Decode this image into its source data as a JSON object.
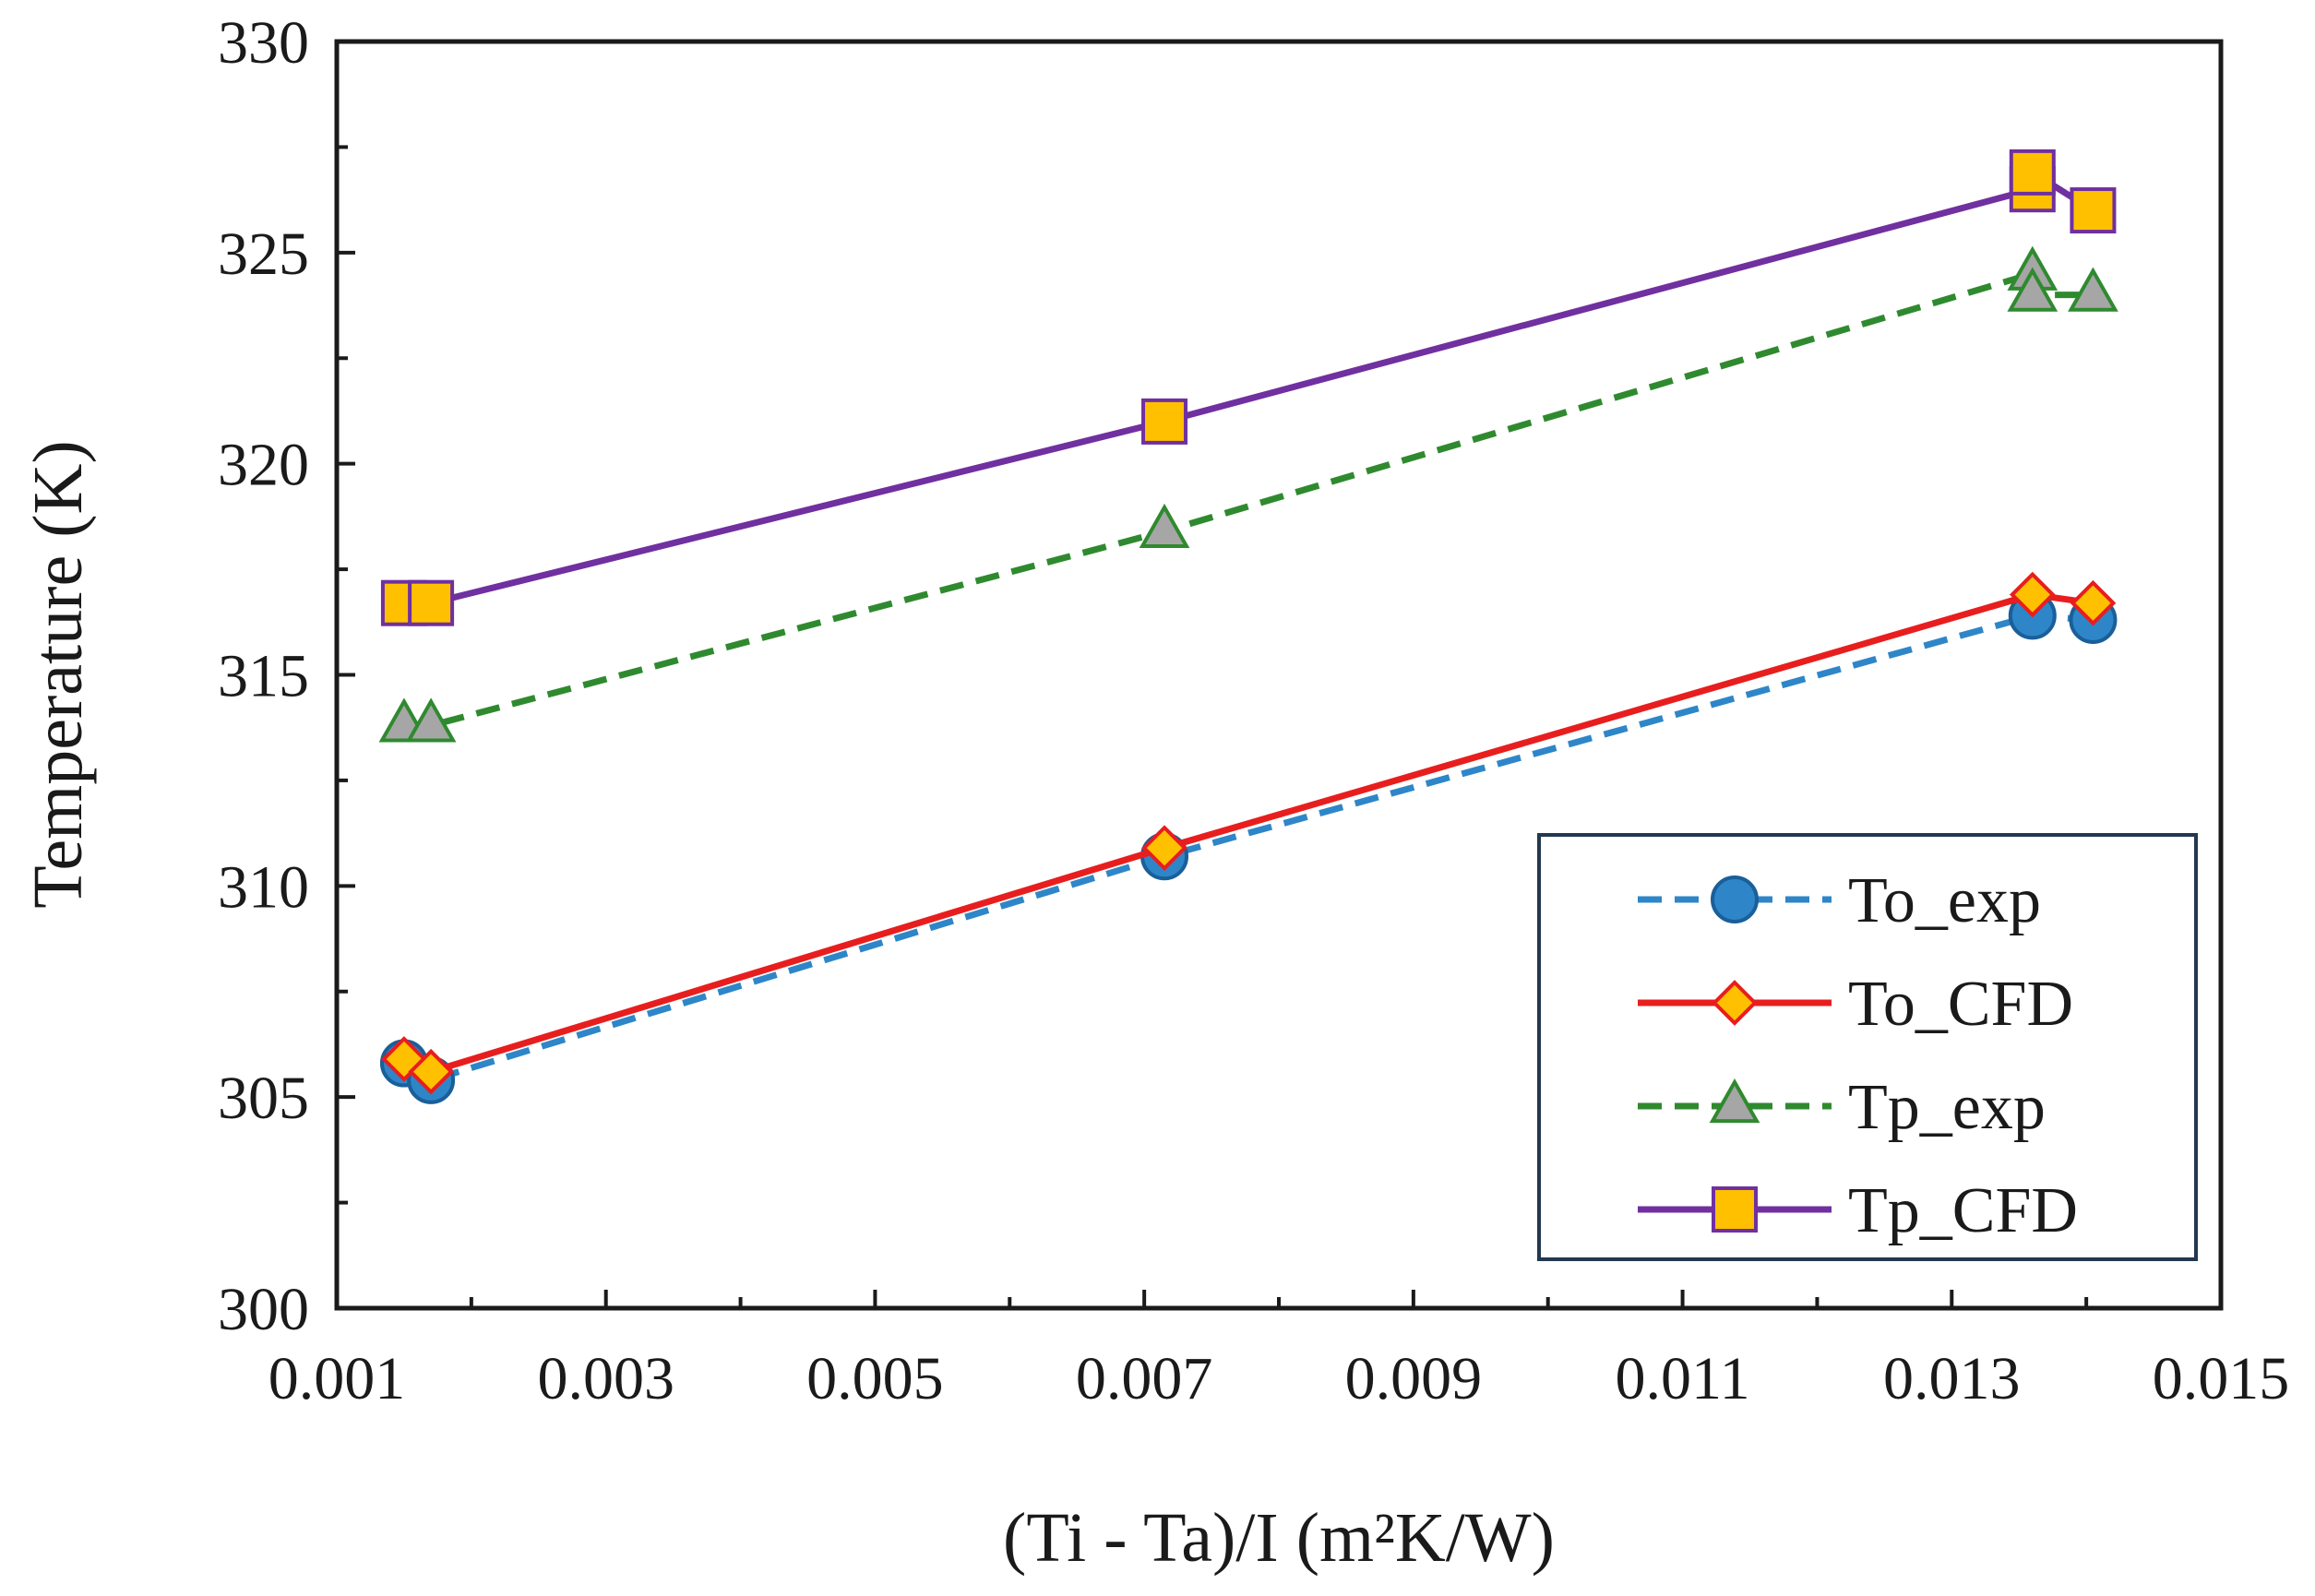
{
  "chart_data": {
    "type": "line",
    "title": "",
    "xlabel": "(Ti - Ta)/I (m²K/W)",
    "ylabel": "Temperature (K)",
    "xlim": [
      0.001,
      0.015
    ],
    "ylim": [
      300,
      330
    ],
    "xticks": [
      0.001,
      0.003,
      0.005,
      0.007,
      0.009,
      0.011,
      0.013,
      0.015
    ],
    "xtick_labels": [
      "0.001",
      "0.003",
      "0.005",
      "0.007",
      "0.009",
      "0.011",
      "0.013",
      "0.015"
    ],
    "yticks": [
      300,
      305,
      310,
      315,
      320,
      325,
      330
    ],
    "ytick_labels": [
      "300",
      "305",
      "310",
      "315",
      "320",
      "325",
      "330"
    ],
    "grid": false,
    "legend_position": "bottom-right",
    "series": [
      {
        "name": "To_exp",
        "line_style": "dashed",
        "marker": "circle",
        "line_color": "#2e86c8",
        "marker_fill": "#2e86c8",
        "marker_edge": "#1a5f99",
        "points": [
          {
            "x": 0.0015,
            "y": 305.8
          },
          {
            "x": 0.0017,
            "y": 305.4
          },
          {
            "x": 0.00715,
            "y": 310.7
          },
          {
            "x": 0.0136,
            "y": 316.4
          },
          {
            "x": 0.01405,
            "y": 316.3
          }
        ]
      },
      {
        "name": "To_CFD",
        "line_style": "solid",
        "marker": "diamond",
        "line_color": "#e81e1e",
        "marker_fill": "#ffc000",
        "marker_edge": "#e81e1e",
        "points": [
          {
            "x": 0.0015,
            "y": 305.9
          },
          {
            "x": 0.0017,
            "y": 305.6
          },
          {
            "x": 0.00715,
            "y": 310.9
          },
          {
            "x": 0.0136,
            "y": 316.9
          },
          {
            "x": 0.01405,
            "y": 316.7
          }
        ]
      },
      {
        "name": "Tp_exp",
        "line_style": "dashed",
        "marker": "triangle",
        "line_color": "#2f8a2f",
        "marker_fill": "#a6a6a6",
        "marker_edge": "#2f8a2f",
        "points": [
          {
            "x": 0.0015,
            "y": 313.8
          },
          {
            "x": 0.0017,
            "y": 313.8
          },
          {
            "x": 0.00715,
            "y": 318.4
          },
          {
            "x": 0.0136,
            "y": 324.5
          },
          {
            "x": 0.0136,
            "y": 324.0
          },
          {
            "x": 0.01405,
            "y": 324.0
          }
        ]
      },
      {
        "name": "Tp_CFD",
        "line_style": "solid",
        "marker": "square",
        "line_color": "#7030a0",
        "marker_fill": "#ffc000",
        "marker_edge": "#7030a0",
        "points": [
          {
            "x": 0.0015,
            "y": 316.7
          },
          {
            "x": 0.0017,
            "y": 316.7
          },
          {
            "x": 0.00715,
            "y": 321.0
          },
          {
            "x": 0.0136,
            "y": 326.5
          },
          {
            "x": 0.0136,
            "y": 326.9
          },
          {
            "x": 0.01405,
            "y": 326.0
          }
        ]
      }
    ]
  }
}
